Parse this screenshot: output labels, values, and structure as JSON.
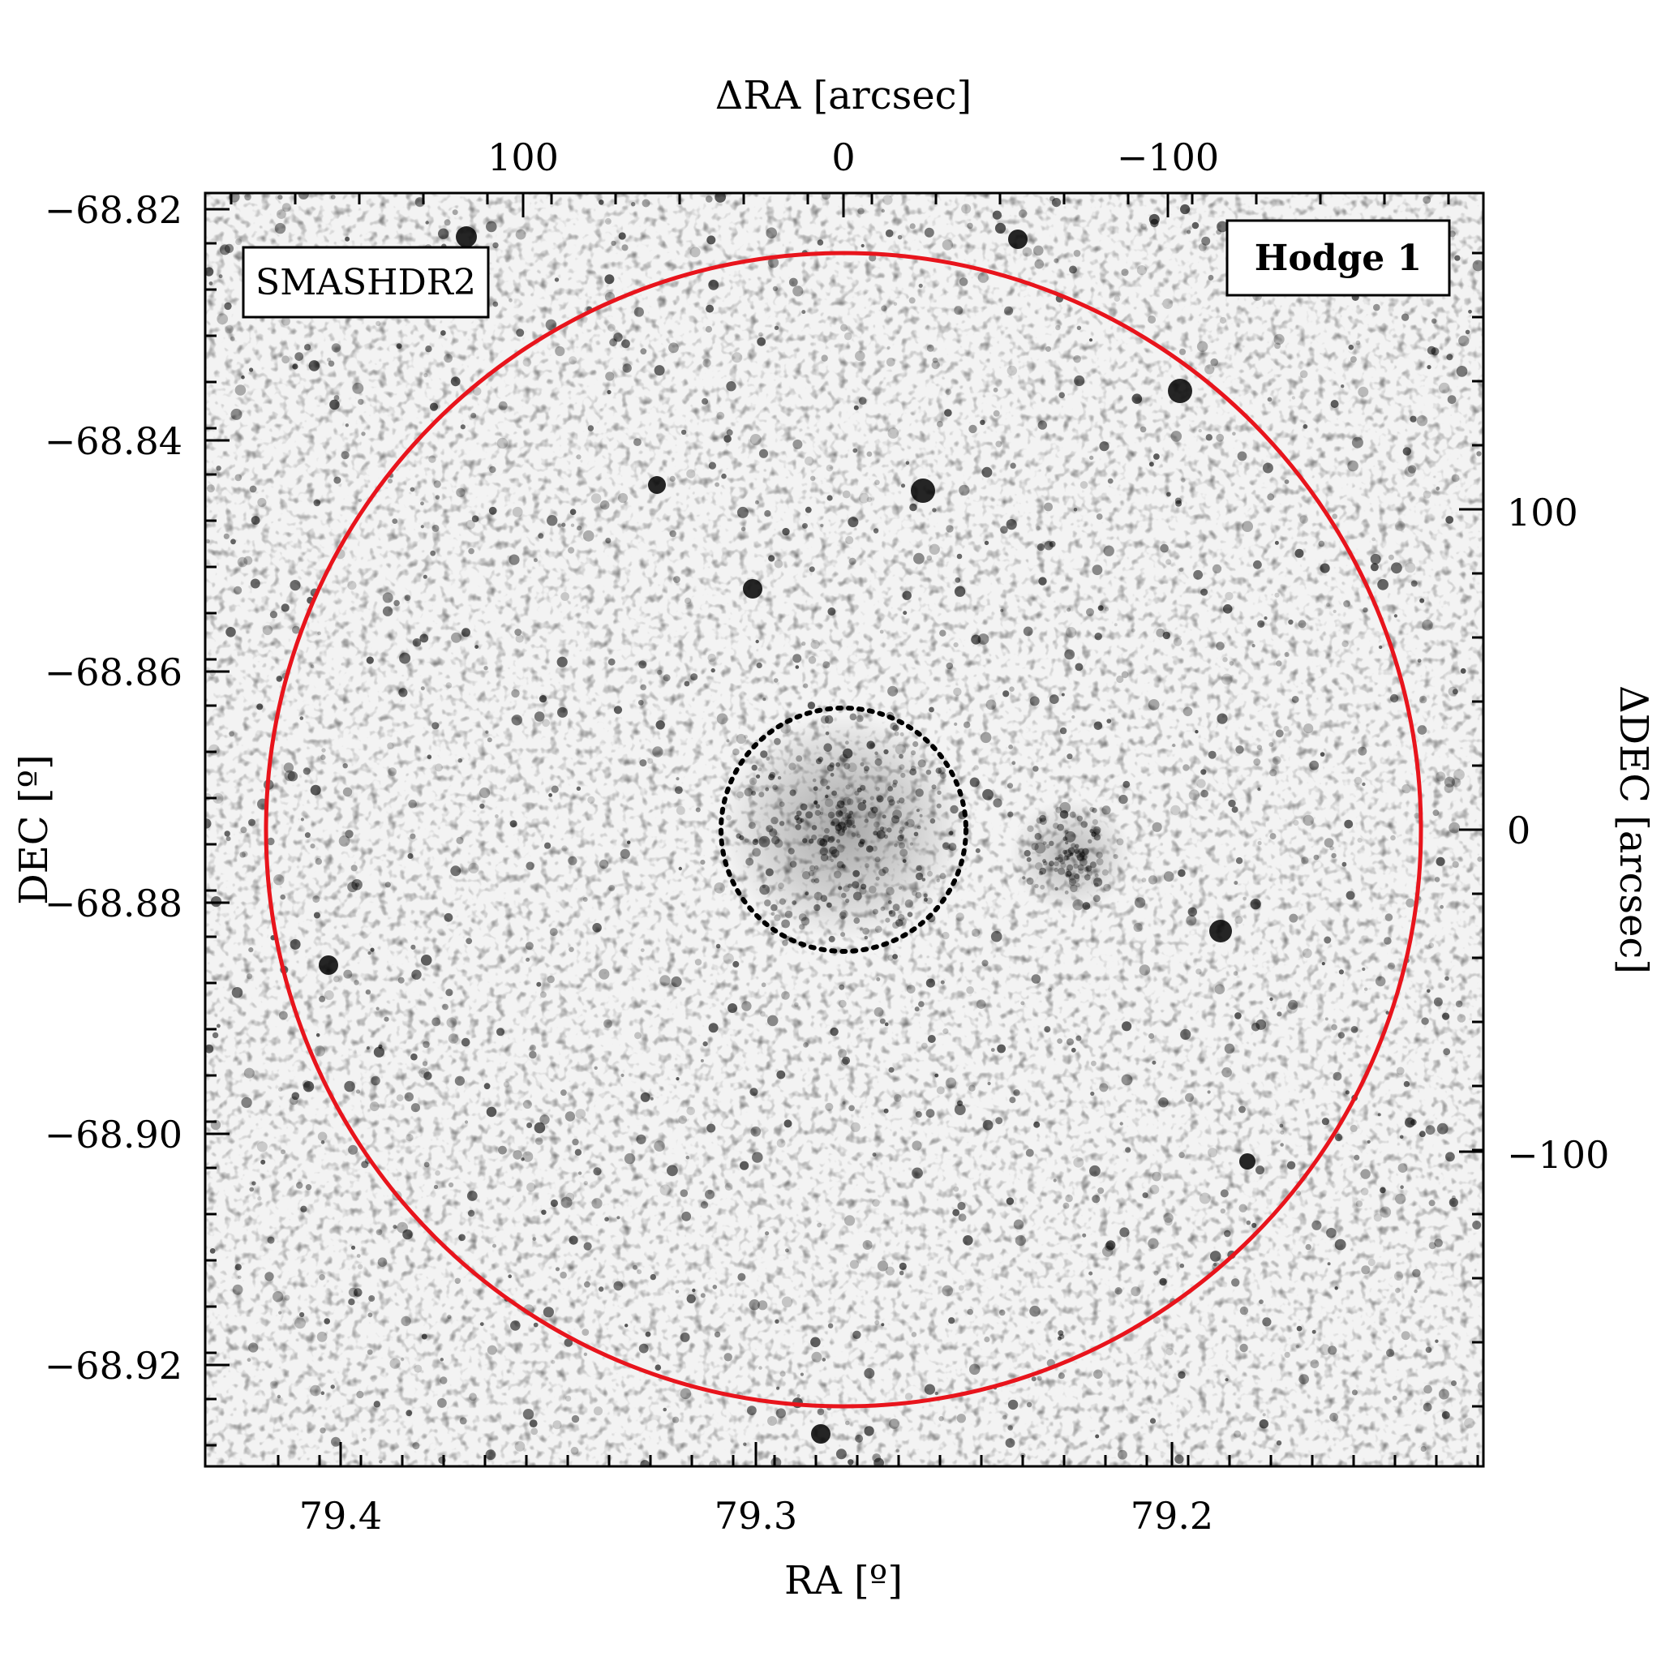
{
  "figure": {
    "object_label": "Hodge 1",
    "survey_label": "SMASHDR2",
    "survey_label_color": "#e8141c",
    "outer_circle_color": "#e8141c",
    "inner_circle_style": "dotted",
    "inner_circle_color": "#000000",
    "background": "grayscale star field",
    "axes": {
      "bottom": {
        "title": "RA [º]",
        "ticks": [
          "79.4",
          "79.3",
          "79.2"
        ],
        "values": [
          79.4,
          79.3,
          79.2
        ],
        "range": [
          79.4315,
          79.1245
        ]
      },
      "left": {
        "title": "DEC [º]",
        "ticks": [
          "−68.82",
          "−68.84",
          "−68.86",
          "−68.88",
          "−68.90",
          "−68.92"
        ],
        "values": [
          -68.82,
          -68.84,
          -68.86,
          -68.88,
          -68.9,
          -68.92
        ],
        "range": [
          -68.8185,
          -68.9285
        ]
      },
      "top": {
        "title": "ΔRA [arcsec]",
        "ticks": [
          "100",
          "0",
          "−100"
        ],
        "values": [
          100,
          0,
          -100
        ],
        "range": [
          197,
          -199
        ]
      },
      "right": {
        "title": "ΔDEC [arcsec]",
        "ticks": [
          "100",
          "0",
          "−100"
        ],
        "values": [
          100,
          0,
          -100
        ],
        "range": [
          198,
          -198
        ]
      }
    }
  }
}
